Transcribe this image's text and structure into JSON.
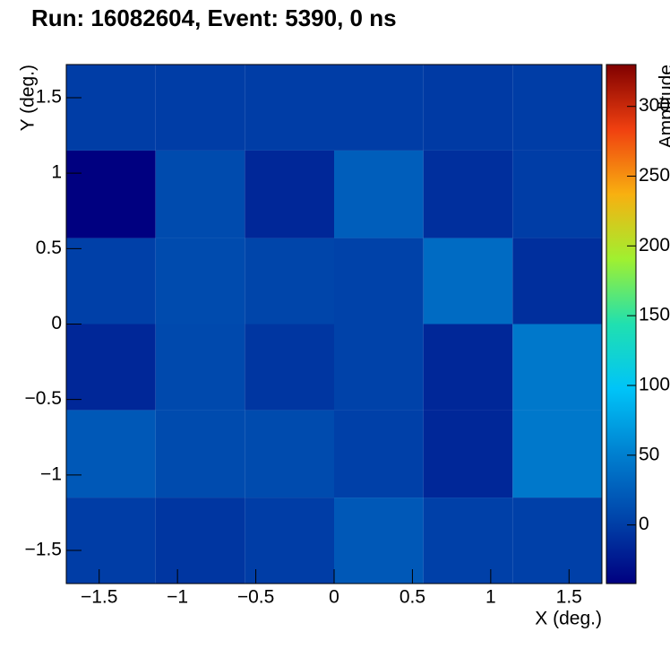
{
  "chart_data": {
    "type": "heatmap",
    "title": "Run: 16082604, Event: 5390, 0 ns",
    "x_label": "X (deg.)",
    "y_label": "Y (deg.)",
    "z_label": "Amplitude",
    "xbins": [
      -1.71,
      -1.14,
      -0.57,
      0,
      0.57,
      1.14,
      1.71
    ],
    "ybins": [
      -1.72,
      -1.15,
      -0.57,
      0,
      0.57,
      1.15,
      1.72
    ],
    "z": [
      [
        0,
        -5,
        0,
        20,
        2,
        2
      ],
      [
        20,
        10,
        10,
        2,
        -15,
        45
      ],
      [
        -15,
        8,
        -5,
        3,
        -15,
        45
      ],
      [
        2,
        10,
        5,
        3,
        35,
        -10
      ],
      [
        -42,
        10,
        -15,
        25,
        -10,
        0
      ],
      [
        0,
        0,
        0,
        0,
        -2,
        0
      ]
    ],
    "xlim": [
      -1.71,
      1.71
    ],
    "ylim": [
      -1.72,
      1.72
    ],
    "zlim": [
      -42,
      330
    ],
    "xticks": [
      {
        "value": -1.5,
        "label": "−1.5"
      },
      {
        "value": -1,
        "label": "−1"
      },
      {
        "value": -0.5,
        "label": "−0.5"
      },
      0,
      0.5,
      1,
      1.5
    ],
    "yticks": [
      {
        "value": -1.5,
        "label": "−1.5"
      },
      {
        "value": -1,
        "label": "−1"
      },
      {
        "value": -0.5,
        "label": "−0.5"
      },
      0,
      0.5,
      1,
      1.5
    ],
    "zticks": [
      0,
      50,
      100,
      150,
      200,
      250,
      300
    ],
    "colormap": [
      "#000080",
      "#0044aa",
      "#0080d0",
      "#00c4f8",
      "#20e0b0",
      "#a0f030",
      "#f8b010",
      "#f04010",
      "#800000"
    ]
  }
}
